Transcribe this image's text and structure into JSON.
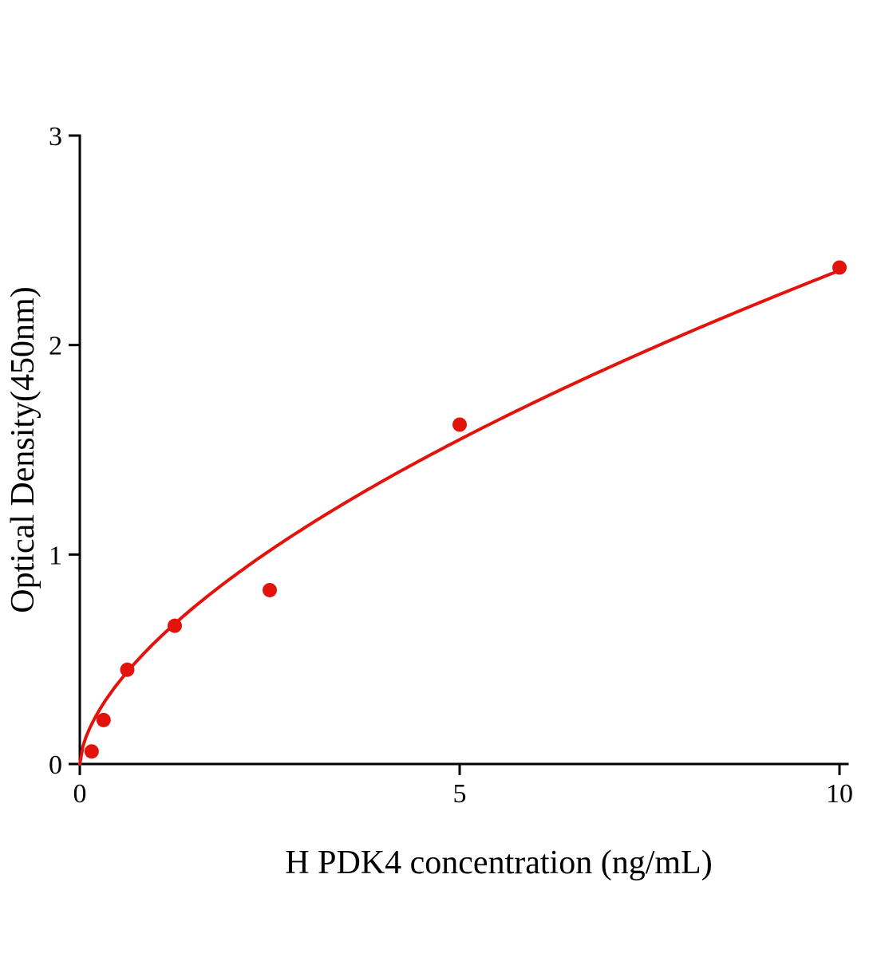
{
  "page": {
    "background_color": "#ffffff"
  },
  "chart_data": {
    "type": "scatter",
    "title": "",
    "xlabel": "H PDK4 concentration (ng/mL)",
    "ylabel": "Optical Density(450nm)",
    "x": [
      0.156,
      0.313,
      0.625,
      1.25,
      2.5,
      5,
      10
    ],
    "y": [
      0.06,
      0.21,
      0.45,
      0.66,
      0.83,
      1.62,
      2.37
    ],
    "xlim": [
      0,
      10
    ],
    "ylim": [
      0,
      3
    ],
    "xticks": [
      0,
      5,
      10
    ],
    "yticks": [
      0,
      1,
      2,
      3
    ],
    "grid": false,
    "legend": null,
    "fit_curve": {
      "type": "power",
      "a": 0.585,
      "b": 0.605
    },
    "point_color": "#e3120b",
    "line_color": "#e3120b",
    "axis_color": "#000000",
    "point_radius": 9,
    "line_width": 4
  }
}
